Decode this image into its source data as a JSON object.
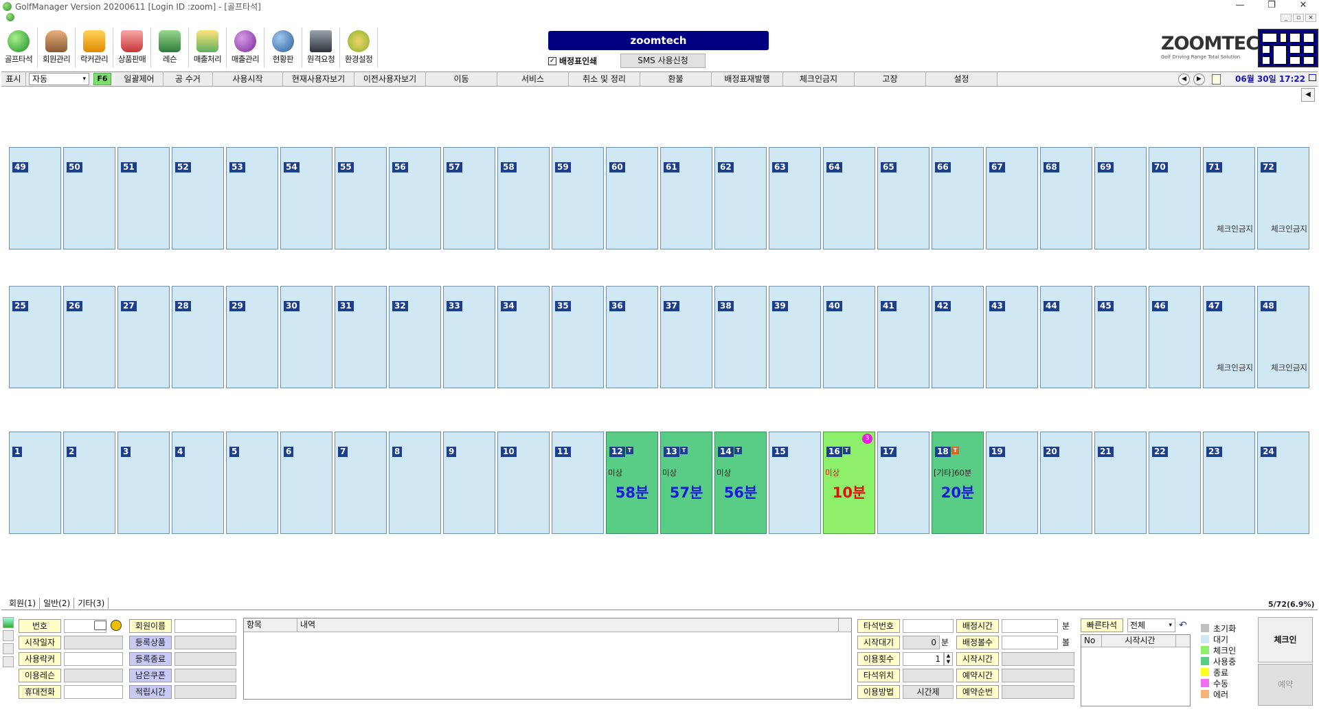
{
  "window": {
    "title": "GolfManager Version 20200611 [Login ID :zoom] - [골프타석]",
    "controls": [
      "—",
      "❐",
      "✕"
    ],
    "mdi_controls": [
      "_",
      "▫",
      "×"
    ]
  },
  "toolbar": [
    {
      "label": "골프타석",
      "icon": "golf-ball-icon",
      "cls": "c1"
    },
    {
      "label": "회원관리",
      "icon": "members-icon",
      "cls": "c2"
    },
    {
      "label": "락커관리",
      "icon": "locker-box-icon",
      "cls": "c3"
    },
    {
      "label": "상품판매",
      "icon": "shopping-basket-icon",
      "cls": "c4"
    },
    {
      "label": "레슨",
      "icon": "lesson-board-icon",
      "cls": "c5"
    },
    {
      "label": "매출처리",
      "icon": "calculator-icon",
      "cls": "c6"
    },
    {
      "label": "매출관리",
      "icon": "sales-manage-icon",
      "cls": "c7"
    },
    {
      "label": "현황판",
      "icon": "status-board-icon",
      "cls": "c8"
    },
    {
      "label": "원격요청",
      "icon": "remote-request-icon",
      "cls": "c9"
    },
    {
      "label": "환경설정",
      "icon": "settings-gears-icon",
      "cls": "c10"
    }
  ],
  "company": {
    "name": "zoomtech",
    "print_check_label": "배정표인쇄",
    "print_checked": true,
    "sms_button": "SMS 사용신청",
    "logo_text": "ZOOMTECH",
    "logo_tagline": "Golf Driving Range Total Solution"
  },
  "menubar": {
    "display_label": "표시",
    "mode_value": "자동",
    "f6_label": "F6",
    "items": [
      {
        "label": "일괄제어",
        "w": 70
      },
      {
        "label": "공 수거",
        "w": 72
      },
      {
        "label": "사용시작",
        "w": 102
      },
      {
        "label": "현재사용자보기",
        "w": 104
      },
      {
        "label": "이전사용자보기",
        "w": 104
      },
      {
        "label": "이동",
        "w": 104
      },
      {
        "label": "서비스",
        "w": 104
      },
      {
        "label": "취소 및 정리",
        "w": 104
      },
      {
        "label": "환불",
        "w": 104
      },
      {
        "label": "배정표재발행",
        "w": 104
      },
      {
        "label": "체크인금지",
        "w": 104
      },
      {
        "label": "고장",
        "w": 104
      },
      {
        "label": "설정",
        "w": 104
      }
    ],
    "datetime": "06월 30일 17:22"
  },
  "bays": {
    "rows": [
      [
        {
          "n": "49"
        },
        {
          "n": "50"
        },
        {
          "n": "51"
        },
        {
          "n": "52"
        },
        {
          "n": "53"
        },
        {
          "n": "54"
        },
        {
          "n": "55"
        },
        {
          "n": "56"
        },
        {
          "n": "57"
        },
        {
          "n": "58"
        },
        {
          "n": "59"
        },
        {
          "n": "60"
        },
        {
          "n": "61"
        },
        {
          "n": "62"
        },
        {
          "n": "63"
        },
        {
          "n": "64"
        },
        {
          "n": "65"
        },
        {
          "n": "66"
        },
        {
          "n": "67"
        },
        {
          "n": "68"
        },
        {
          "n": "69"
        },
        {
          "n": "70"
        },
        {
          "n": "71",
          "note": "체크인금지"
        },
        {
          "n": "72",
          "note": "체크인금지"
        }
      ],
      [
        {
          "n": "25"
        },
        {
          "n": "26"
        },
        {
          "n": "27"
        },
        {
          "n": "28"
        },
        {
          "n": "29"
        },
        {
          "n": "30"
        },
        {
          "n": "31"
        },
        {
          "n": "32"
        },
        {
          "n": "33"
        },
        {
          "n": "34"
        },
        {
          "n": "35"
        },
        {
          "n": "36"
        },
        {
          "n": "37"
        },
        {
          "n": "38"
        },
        {
          "n": "39"
        },
        {
          "n": "40"
        },
        {
          "n": "41"
        },
        {
          "n": "42"
        },
        {
          "n": "43"
        },
        {
          "n": "44"
        },
        {
          "n": "45"
        },
        {
          "n": "46"
        },
        {
          "n": "47",
          "note": "체크인금지"
        },
        {
          "n": "48",
          "note": "체크인금지"
        }
      ],
      [
        {
          "n": "1"
        },
        {
          "n": "2"
        },
        {
          "n": "3"
        },
        {
          "n": "4"
        },
        {
          "n": "5"
        },
        {
          "n": "6"
        },
        {
          "n": "7"
        },
        {
          "n": "8"
        },
        {
          "n": "9"
        },
        {
          "n": "10"
        },
        {
          "n": "11"
        },
        {
          "n": "12",
          "state": "in-use",
          "t": true,
          "status": "미상",
          "mins": "58분"
        },
        {
          "n": "13",
          "state": "in-use",
          "t": true,
          "status": "미상",
          "mins": "57분"
        },
        {
          "n": "14",
          "state": "in-use",
          "t": true,
          "status": "미상",
          "mins": "56분"
        },
        {
          "n": "15"
        },
        {
          "n": "16",
          "state": "checkin",
          "t": true,
          "status": "미상",
          "mins": "10분",
          "badge": "3"
        },
        {
          "n": "17"
        },
        {
          "n": "18",
          "state": "in-use",
          "t": true,
          "t_orange": true,
          "status": "[기타]60분",
          "mins": "20분"
        },
        {
          "n": "19"
        },
        {
          "n": "20"
        },
        {
          "n": "21"
        },
        {
          "n": "22"
        },
        {
          "n": "23"
        },
        {
          "n": "24"
        }
      ]
    ]
  },
  "bottom": {
    "tabs": [
      "회원(1)",
      "일반(2)",
      "기타(3)"
    ],
    "count": "5/72(6.9%)",
    "left_labels": [
      "번호",
      "시작일자",
      "사용락커",
      "이용레슨",
      "휴대전화"
    ],
    "mid_labels": [
      "회원이름",
      "등록상품",
      "등록종료",
      "남은쿠폰",
      "적립시간"
    ],
    "detail_headers": [
      "항목",
      "내역"
    ],
    "right_labels": [
      "타석번호",
      "시작대기",
      "이용횟수",
      "타석위치",
      "이용방법"
    ],
    "wait_value": "0",
    "wait_unit": "분",
    "count_value": "1",
    "method_value": "시간제",
    "right2_labels": [
      "배정시간",
      "배정볼수",
      "시작시간",
      "예약시간",
      "예약순번"
    ],
    "assign_time_unit": "분",
    "assign_ball_unit": "볼",
    "quick_label": "빠른타석",
    "quick_select": "전체",
    "quick_headers": [
      "No",
      "시작시간"
    ],
    "legend": [
      {
        "label": "초기화",
        "color": "#c0c0c0"
      },
      {
        "label": "대기",
        "color": "#cfe8f3"
      },
      {
        "label": "체크인",
        "color": "#8ef06a"
      },
      {
        "label": "사용중",
        "color": "#59cc86"
      },
      {
        "label": "종료",
        "color": "#ffff22"
      },
      {
        "label": "수동",
        "color": "#f06ef0"
      },
      {
        "label": "에러",
        "color": "#f5b27a"
      }
    ],
    "checkin_button": "체크인",
    "reserve_button": "예약"
  }
}
